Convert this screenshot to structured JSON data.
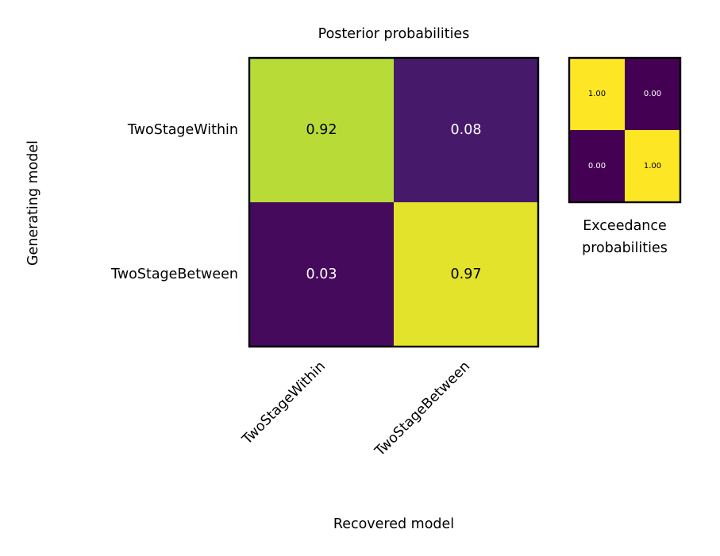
{
  "chart_data": [
    {
      "type": "heatmap",
      "title": "Posterior probabilities",
      "xlabel": "Recovered model",
      "ylabel": "Generating model",
      "x_categories": [
        "TwoStageWithin",
        "TwoStageBetween"
      ],
      "y_categories": [
        "TwoStageWithin",
        "TwoStageBetween"
      ],
      "values": [
        [
          0.92,
          0.08
        ],
        [
          0.03,
          0.97
        ]
      ],
      "value_labels": [
        [
          "0.92",
          "0.08"
        ],
        [
          "0.03",
          "0.97"
        ]
      ],
      "colormap": "viridis",
      "vmin": 0,
      "vmax": 1
    },
    {
      "type": "heatmap",
      "title": "Exceedance probabilities",
      "title_lines": [
        "Exceedance",
        "probabilities"
      ],
      "values": [
        [
          1.0,
          0.0
        ],
        [
          0.0,
          1.0
        ]
      ],
      "value_labels": [
        [
          "1.00",
          "0.00"
        ],
        [
          "0.00",
          "1.00"
        ]
      ],
      "colormap": "viridis",
      "vmin": 0,
      "vmax": 1
    }
  ]
}
